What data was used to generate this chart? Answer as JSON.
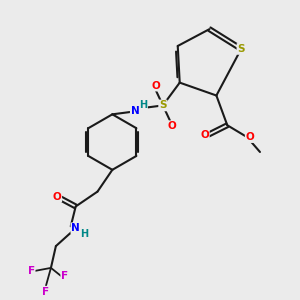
{
  "bg_color": "#ebebeb",
  "bond_color": "#1a1a1a",
  "colors": {
    "S": "#999900",
    "O": "#ff0000",
    "N": "#0000ff",
    "F": "#cc00cc",
    "C": "#1a1a1a",
    "H": "#008888"
  },
  "figsize": [
    3.0,
    3.0
  ],
  "dpi": 100
}
